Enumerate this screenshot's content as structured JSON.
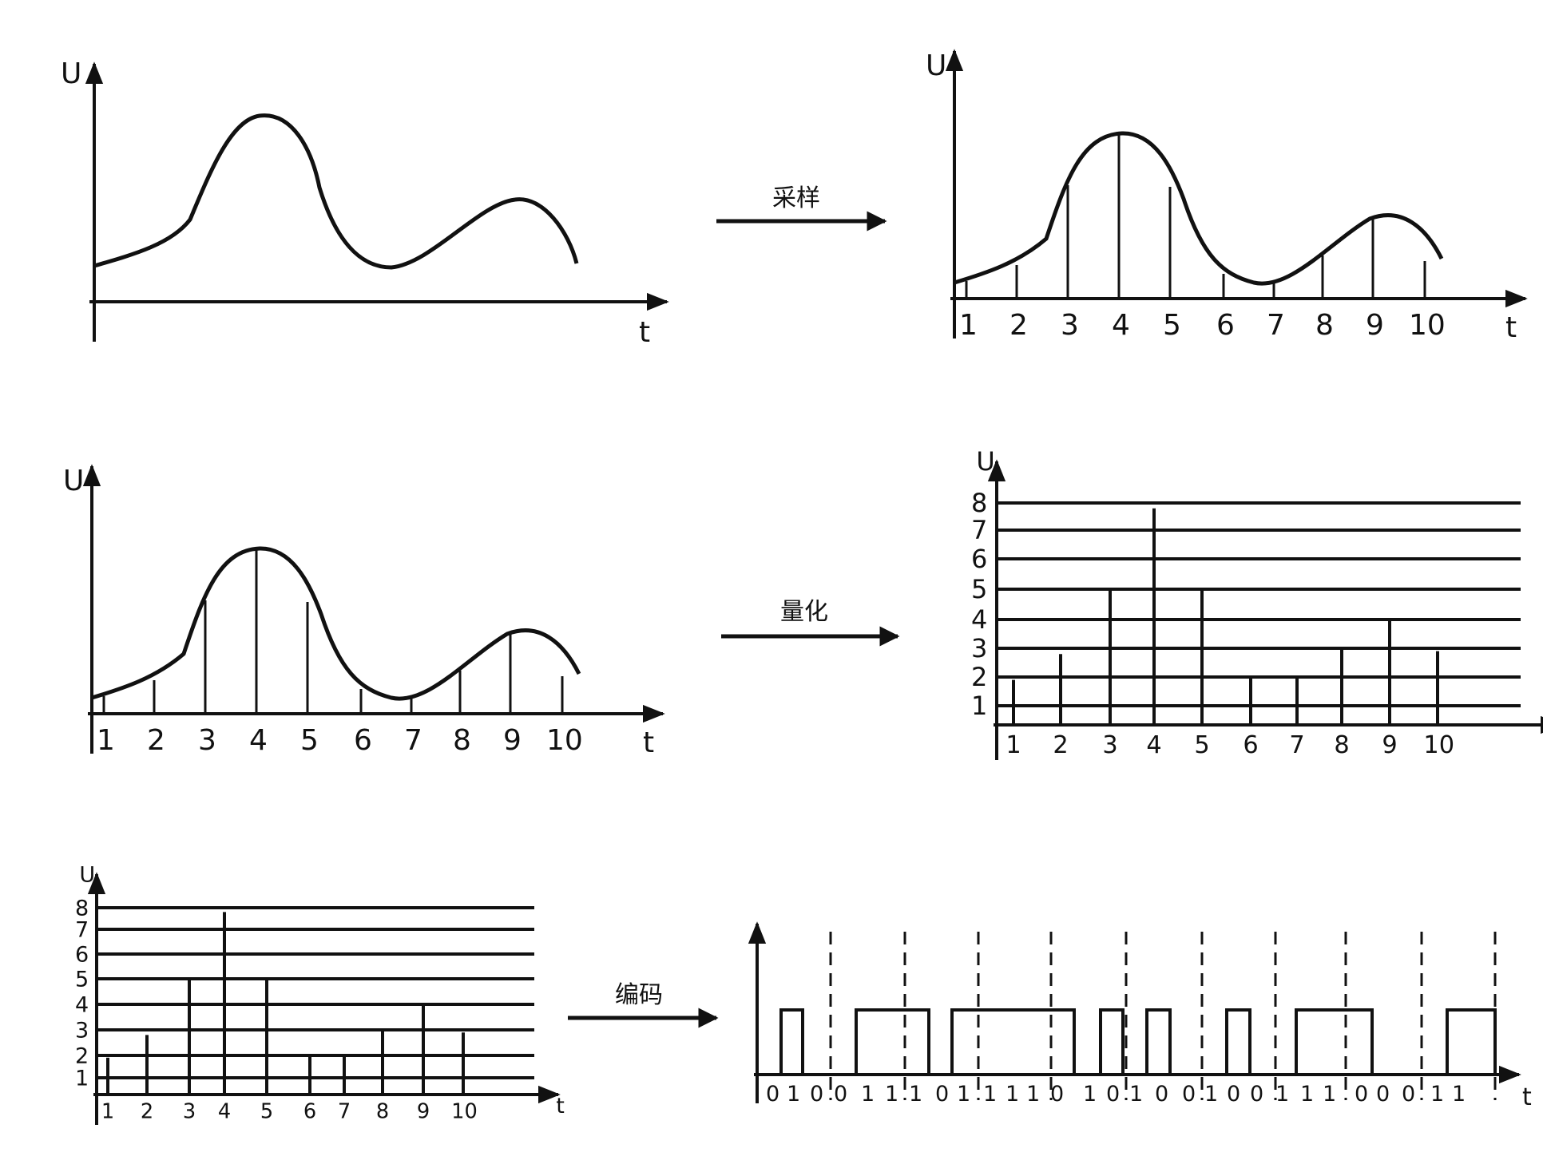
{
  "panel1": {
    "y_axis": "U",
    "x_axis": "t"
  },
  "panel2": {
    "y_axis": "U",
    "x_axis": "t",
    "ticks": [
      "1",
      "2",
      "3",
      "4",
      "5",
      "6",
      "7",
      "8",
      "9",
      "10"
    ]
  },
  "panel3": {
    "y_axis": "U",
    "x_axis": "t",
    "ticks": [
      "1",
      "2",
      "3",
      "4",
      "5",
      "6",
      "7",
      "8",
      "9",
      "10"
    ]
  },
  "panel4": {
    "y_axis": "U",
    "x_axis": "t",
    "ticks": [
      "1",
      "2",
      "3",
      "4",
      "5",
      "6",
      "7",
      "8",
      "9",
      "10"
    ],
    "levels": [
      "1",
      "2",
      "3",
      "4",
      "5",
      "6",
      "7",
      "8"
    ]
  },
  "panel5": {
    "y_axis": "U",
    "x_axis": "t",
    "ticks": [
      "1",
      "2",
      "3",
      "4",
      "5",
      "6",
      "7",
      "8",
      "9",
      "10"
    ],
    "levels": [
      "1",
      "2",
      "3",
      "4",
      "5",
      "6",
      "7",
      "8"
    ]
  },
  "panel6": {
    "x_axis": "t",
    "bits": [
      "0",
      "1",
      "0",
      "0",
      "1",
      "1",
      "1",
      "0",
      "1",
      "1",
      "1",
      "1",
      "0",
      "1",
      "0",
      "1",
      "0",
      "0",
      "1",
      "0",
      "0",
      "1",
      "1",
      "1",
      "0",
      "0",
      "0",
      "1",
      "1"
    ]
  },
  "steps": {
    "sampling": "采样",
    "quantization": "量化",
    "encoding": "编码"
  },
  "samples": {
    "quantized_levels": [
      1.9,
      2.8,
      5.0,
      7.8,
      5.0,
      2.0,
      2.0,
      3.0,
      4.0,
      2.9
    ]
  }
}
